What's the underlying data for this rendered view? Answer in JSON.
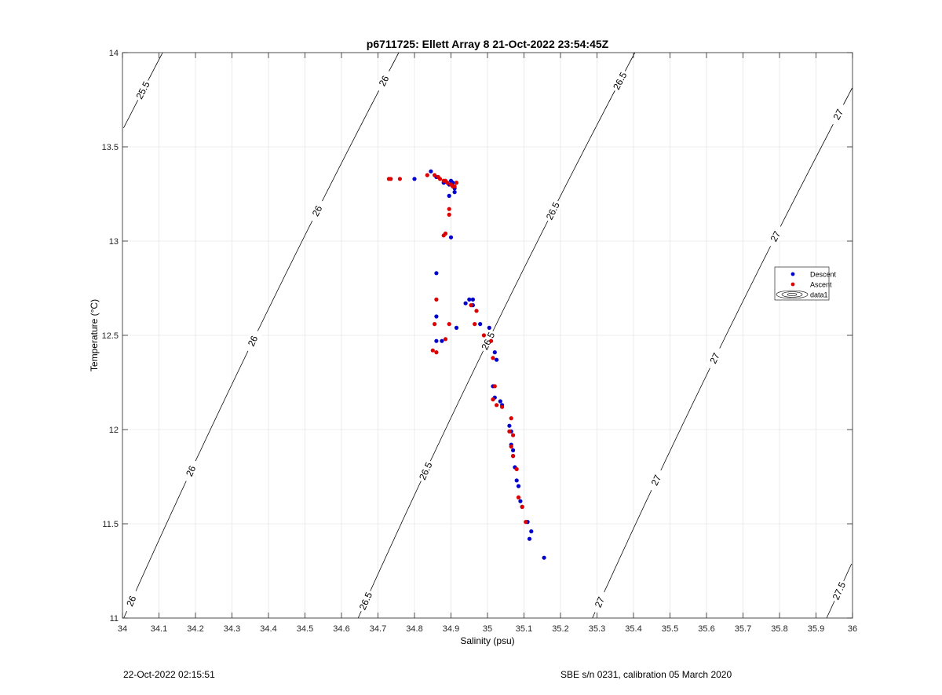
{
  "chart_data": {
    "type": "scatter",
    "title": "p6711725: Ellett Array 8 21-Oct-2022 23:54:45Z",
    "xlabel": "Salinity (psu)",
    "ylabel": "Temperature (°C)",
    "xlim": [
      34,
      36
    ],
    "ylim": [
      11,
      14
    ],
    "x_ticks": [
      34,
      34.1,
      34.2,
      34.3,
      34.4,
      34.5,
      34.6,
      34.7,
      34.8,
      34.9,
      35,
      35.1,
      35.2,
      35.3,
      35.4,
      35.5,
      35.6,
      35.7,
      35.8,
      35.9,
      36
    ],
    "x_tick_labels": [
      "34",
      "34.1",
      "34.2",
      "34.3",
      "34.4",
      "34.5",
      "34.6",
      "34.7",
      "34.8",
      "34.9",
      "35",
      "35.1",
      "35.2",
      "35.3",
      "35.4",
      "35.5",
      "35.6",
      "35.7",
      "35.8",
      "35.9",
      "36"
    ],
    "y_ticks": [
      11,
      11.5,
      12,
      12.5,
      13,
      13.5,
      14
    ],
    "y_tick_labels": [
      "11",
      "11.5",
      "12",
      "12.5",
      "13",
      "13.5",
      "14"
    ],
    "grid": true,
    "legend_position": "right",
    "series": [
      {
        "name": "Descent",
        "color": "#0000cc",
        "marker": "dot",
        "points": [
          [
            34.8,
            13.33
          ],
          [
            34.845,
            13.37
          ],
          [
            34.86,
            13.34
          ],
          [
            34.88,
            13.31
          ],
          [
            34.895,
            13.3
          ],
          [
            34.9,
            13.32
          ],
          [
            34.905,
            13.31
          ],
          [
            34.91,
            13.28
          ],
          [
            34.91,
            13.26
          ],
          [
            34.895,
            13.24
          ],
          [
            34.9,
            13.02
          ],
          [
            34.86,
            12.83
          ],
          [
            34.86,
            12.6
          ],
          [
            34.86,
            12.47
          ],
          [
            34.875,
            12.47
          ],
          [
            34.915,
            12.54
          ],
          [
            34.94,
            12.67
          ],
          [
            34.95,
            12.69
          ],
          [
            34.96,
            12.69
          ],
          [
            34.96,
            12.66
          ],
          [
            34.98,
            12.56
          ],
          [
            35.005,
            12.54
          ],
          [
            35.02,
            12.41
          ],
          [
            35.025,
            12.37
          ],
          [
            35.015,
            12.23
          ],
          [
            35.02,
            12.17
          ],
          [
            35.035,
            12.15
          ],
          [
            35.04,
            12.13
          ],
          [
            35.06,
            12.02
          ],
          [
            35.065,
            11.99
          ],
          [
            35.065,
            11.92
          ],
          [
            35.07,
            11.89
          ],
          [
            35.07,
            11.86
          ],
          [
            35.075,
            11.8
          ],
          [
            35.08,
            11.73
          ],
          [
            35.085,
            11.7
          ],
          [
            35.09,
            11.62
          ],
          [
            35.095,
            11.59
          ],
          [
            35.11,
            11.51
          ],
          [
            35.12,
            11.46
          ],
          [
            35.115,
            11.42
          ],
          [
            35.155,
            11.32
          ]
        ]
      },
      {
        "name": "Ascent",
        "color": "#dd0000",
        "marker": "dot",
        "points": [
          [
            34.73,
            13.33
          ],
          [
            34.735,
            13.33
          ],
          [
            34.76,
            13.33
          ],
          [
            34.835,
            13.35
          ],
          [
            34.855,
            13.35
          ],
          [
            34.865,
            13.34
          ],
          [
            34.87,
            13.33
          ],
          [
            34.88,
            13.32
          ],
          [
            34.885,
            13.32
          ],
          [
            34.89,
            13.31
          ],
          [
            34.9,
            13.3
          ],
          [
            34.905,
            13.29
          ],
          [
            34.915,
            13.31
          ],
          [
            34.91,
            13.29
          ],
          [
            34.895,
            13.17
          ],
          [
            34.895,
            13.14
          ],
          [
            34.885,
            13.04
          ],
          [
            34.88,
            13.03
          ],
          [
            34.86,
            12.69
          ],
          [
            34.855,
            12.56
          ],
          [
            34.85,
            12.42
          ],
          [
            34.86,
            12.41
          ],
          [
            34.885,
            12.48
          ],
          [
            34.895,
            12.56
          ],
          [
            34.955,
            12.66
          ],
          [
            34.965,
            12.56
          ],
          [
            34.97,
            12.63
          ],
          [
            34.99,
            12.5
          ],
          [
            35.01,
            12.47
          ],
          [
            35.015,
            12.38
          ],
          [
            35.02,
            12.23
          ],
          [
            35.015,
            12.16
          ],
          [
            35.025,
            12.13
          ],
          [
            35.04,
            12.12
          ],
          [
            35.065,
            12.06
          ],
          [
            35.06,
            11.99
          ],
          [
            35.07,
            11.97
          ],
          [
            35.065,
            11.91
          ],
          [
            35.07,
            11.86
          ],
          [
            35.08,
            11.79
          ],
          [
            35.085,
            11.64
          ],
          [
            35.095,
            11.59
          ],
          [
            35.105,
            11.51
          ]
        ]
      }
    ],
    "contours": [
      {
        "level": 25.5,
        "label": "25.5"
      },
      {
        "level": 26,
        "label": "26"
      },
      {
        "level": 26.5,
        "label": "26.5"
      },
      {
        "level": 27,
        "label": "27"
      },
      {
        "level": 27.5,
        "label": "27.5"
      }
    ],
    "legend": {
      "entries": [
        {
          "label": "Descent",
          "color": "#0000cc",
          "kind": "dot"
        },
        {
          "label": "Ascent",
          "color": "#dd0000",
          "kind": "dot"
        },
        {
          "label": "data1",
          "color": "#000000",
          "kind": "contour"
        }
      ]
    }
  },
  "footer": {
    "left": "22-Oct-2022 02:15:51",
    "right": "SBE s/n 0231, calibration 05 March 2020"
  }
}
